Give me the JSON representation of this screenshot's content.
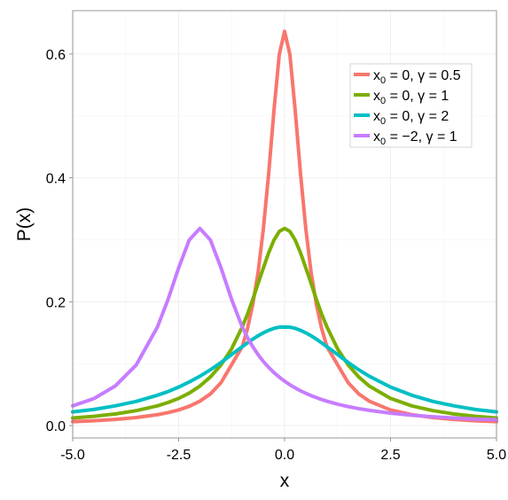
{
  "chart_data": {
    "type": "line",
    "title": "",
    "xlabel": "x",
    "ylabel": "P(x)",
    "xlim": [
      -5,
      5
    ],
    "ylim": [
      -0.02,
      0.67
    ],
    "x_ticks": [
      -5.0,
      -2.5,
      0.0,
      2.5,
      5.0
    ],
    "x_tick_labels": [
      "-5.0",
      "-2.5",
      "0.0",
      "2.5",
      "5.0"
    ],
    "y_ticks": [
      0.0,
      0.2,
      0.4,
      0.6
    ],
    "y_tick_labels": [
      "0.0",
      "0.2",
      "0.4",
      "0.6"
    ],
    "grid": true,
    "legend_position": "top-right",
    "x": [
      -5,
      -4.5,
      -4,
      -3.5,
      -3,
      -2.75,
      -2.5,
      -2.25,
      -2,
      -1.75,
      -1.5,
      -1.25,
      -1,
      -0.875,
      -0.75,
      -0.625,
      -0.5,
      -0.375,
      -0.25,
      -0.125,
      0,
      0.125,
      0.25,
      0.375,
      0.5,
      0.625,
      0.75,
      0.875,
      1,
      1.25,
      1.5,
      1.75,
      2,
      2.5,
      3,
      3.5,
      4,
      4.5,
      5
    ],
    "series": [
      {
        "legend": {
          "x0": "0",
          "gamma": "0.5"
        },
        "color": "#F8766D",
        "values": [
          0.0063,
          0.0078,
          0.0099,
          0.0129,
          0.0176,
          0.0209,
          0.0252,
          0.0311,
          0.0393,
          0.0511,
          0.0693,
          0.0983,
          0.1273,
          0.1565,
          0.1959,
          0.2476,
          0.3183,
          0.4074,
          0.5093,
          0.5992,
          0.6366,
          0.5992,
          0.5093,
          0.4074,
          0.3183,
          0.2476,
          0.1959,
          0.1565,
          0.1273,
          0.0983,
          0.0693,
          0.0511,
          0.0393,
          0.0252,
          0.0176,
          0.0129,
          0.0099,
          0.0078,
          0.0063
        ]
      },
      {
        "legend": {
          "x0": "0",
          "gamma": "1"
        },
        "color": "#7CAE00",
        "values": [
          0.0122,
          0.0149,
          0.0187,
          0.0241,
          0.0318,
          0.0373,
          0.0439,
          0.0524,
          0.0637,
          0.0785,
          0.0979,
          0.124,
          0.1592,
          0.1799,
          0.2037,
          0.2297,
          0.2546,
          0.2791,
          0.2996,
          0.3135,
          0.3183,
          0.3135,
          0.2996,
          0.2791,
          0.2546,
          0.2297,
          0.2037,
          0.1799,
          0.1592,
          0.124,
          0.0979,
          0.0785,
          0.0637,
          0.0439,
          0.0318,
          0.0241,
          0.0187,
          0.0149,
          0.0122
        ]
      },
      {
        "legend": {
          "x0": "0",
          "gamma": "2"
        },
        "color": "#00BFC4",
        "values": [
          0.022,
          0.026,
          0.0318,
          0.039,
          0.049,
          0.0549,
          0.0621,
          0.0704,
          0.0796,
          0.0901,
          0.1019,
          0.1147,
          0.1273,
          0.1335,
          0.1396,
          0.145,
          0.1498,
          0.1538,
          0.157,
          0.1589,
          0.1592,
          0.1589,
          0.157,
          0.1538,
          0.1498,
          0.145,
          0.1396,
          0.1335,
          0.1273,
          0.1147,
          0.1019,
          0.0901,
          0.0796,
          0.0621,
          0.049,
          0.039,
          0.0318,
          0.026,
          0.022
        ]
      },
      {
        "legend": {
          "x0": "−2",
          "gamma": "1"
        },
        "color": "#C77CFF",
        "values": [
          0.0318,
          0.0435,
          0.0637,
          0.0979,
          0.1592,
          0.2037,
          0.2546,
          0.2996,
          0.3183,
          0.2996,
          0.2546,
          0.2037,
          0.1592,
          0.1421,
          0.1273,
          0.1145,
          0.1034,
          0.0939,
          0.0855,
          0.0782,
          0.0717,
          0.0659,
          0.0608,
          0.0562,
          0.0521,
          0.0484,
          0.0451,
          0.042,
          0.0393,
          0.0345,
          0.0306,
          0.0273,
          0.0245,
          0.02,
          0.0167,
          0.0141,
          0.0122,
          0.0105,
          0.0093
        ]
      }
    ]
  }
}
